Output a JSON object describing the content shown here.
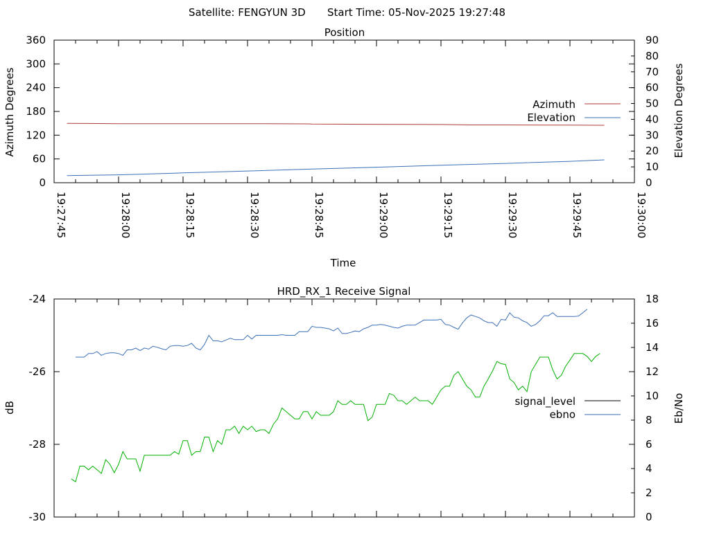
{
  "header": {
    "satellite": "Satellite: FENGYUN 3D",
    "start_time": "Start Time: 05-Nov-2025 19:27:48"
  },
  "chart_data": [
    {
      "type": "line",
      "title": "Position",
      "xlabel": "Time",
      "ylabel": "Azimuth Degrees",
      "y2label": "Elevation Degrees",
      "xlim": [
        "19:27:45",
        "19:30:00"
      ],
      "ylim": [
        0,
        360
      ],
      "y2lim": [
        0,
        90
      ],
      "x_ticks": [
        "19:27:45",
        "19:28:00",
        "19:28:15",
        "19:28:30",
        "19:28:45",
        "19:29:00",
        "19:29:15",
        "19:29:30",
        "19:29:45",
        "19:30:00"
      ],
      "y_ticks": [
        "0",
        "60",
        "120",
        "180",
        "240",
        "300",
        "360"
      ],
      "y2_ticks": [
        "0",
        "10",
        "20",
        "30",
        "40",
        "50",
        "60",
        "70",
        "80",
        "90"
      ],
      "legend_position": "right",
      "series": [
        {
          "name": "Azimuth",
          "axis": "y",
          "color": "#b03a3a",
          "points": [
            [
              "19:27:48",
              150
            ],
            [
              "19:28:00",
              149
            ],
            [
              "19:28:15",
              149
            ],
            [
              "19:28:30",
              149
            ],
            [
              "19:28:44",
              148.5
            ],
            [
              "19:28:45",
              148
            ],
            [
              "19:29:00",
              147.5
            ],
            [
              "19:29:15",
              147
            ],
            [
              "19:29:22",
              146
            ],
            [
              "19:29:30",
              146
            ],
            [
              "19:29:45",
              145.5
            ],
            [
              "19:29:53",
              145
            ]
          ]
        },
        {
          "name": "Elevation",
          "axis": "y2",
          "color": "#3b6fb6",
          "points": [
            [
              "19:27:48",
              4.5
            ],
            [
              "19:28:00",
              5
            ],
            [
              "19:28:15",
              6.2
            ],
            [
              "19:28:30",
              7.4
            ],
            [
              "19:28:45",
              8.6
            ],
            [
              "19:29:00",
              9.8
            ],
            [
              "19:29:15",
              11
            ],
            [
              "19:29:30",
              12.2
            ],
            [
              "19:29:45",
              13.5
            ],
            [
              "19:29:53",
              14.4
            ]
          ]
        }
      ]
    },
    {
      "type": "line",
      "title": "HRD_RX_1 Receive Signal",
      "xlabel": "",
      "ylabel": "dB",
      "y2label": "Eb/No",
      "xlim": [
        "19:27:45",
        "19:30:00"
      ],
      "ylim": [
        -30,
        -24
      ],
      "y2lim": [
        0,
        18
      ],
      "y_ticks": [
        "-30",
        "-28",
        "-26",
        "-24"
      ],
      "y2_ticks": [
        "0",
        "2",
        "4",
        "6",
        "8",
        "10",
        "12",
        "14",
        "16",
        "18"
      ],
      "legend_position": "right",
      "series": [
        {
          "name": "signal_level",
          "axis": "y",
          "color": "#000000",
          "values": []
        },
        {
          "name": "ebno",
          "axis": "y",
          "color": "#3b6fb6",
          "start": "19:27:50",
          "step_seconds": 1,
          "values": [
            -25.6,
            -25.6,
            -25.6,
            -25.5,
            -25.5,
            -25.45,
            -25.55,
            -25.5,
            -25.48,
            -25.48,
            -25.5,
            -25.55,
            -25.4,
            -25.4,
            -25.35,
            -25.42,
            -25.35,
            -25.38,
            -25.3,
            -25.33,
            -25.37,
            -25.4,
            -25.3,
            -25.28,
            -25.28,
            -25.3,
            -25.28,
            -25.22,
            -25.35,
            -25.4,
            -25.25,
            -25.0,
            -25.15,
            -25.15,
            -25.18,
            -25.13,
            -25.08,
            -25.12,
            -25.12,
            -25.12,
            -25.0,
            -25.1,
            -25.0,
            -25.0,
            -25.0,
            -25.0,
            -25.0,
            -25.0,
            -24.98,
            -25.0,
            -25.0,
            -25.0,
            -24.9,
            -24.9,
            -24.9,
            -24.75,
            -24.78,
            -24.78,
            -24.8,
            -24.82,
            -24.88,
            -24.8,
            -24.95,
            -24.95,
            -24.92,
            -24.88,
            -24.9,
            -24.82,
            -24.78,
            -24.72,
            -24.72,
            -24.7,
            -24.72,
            -24.75,
            -24.78,
            -24.8,
            -24.75,
            -24.72,
            -24.72,
            -24.72,
            -24.65,
            -24.58,
            -24.58,
            -24.58,
            -24.58,
            -24.56,
            -24.7,
            -24.72,
            -24.78,
            -24.83,
            -24.66,
            -24.52,
            -24.44,
            -24.48,
            -24.52,
            -24.6,
            -24.65,
            -24.65,
            -24.75,
            -24.56,
            -24.58,
            -24.38,
            -24.5,
            -24.52,
            -24.6,
            -24.65,
            -24.75,
            -24.7,
            -24.6,
            -24.46,
            -24.46,
            -24.38,
            -24.48,
            -24.48,
            -24.48,
            -24.48,
            -24.48,
            -24.47,
            -24.38,
            -24.28
          ]
        },
        {
          "name": "",
          "axis": "y",
          "color": "#00b000",
          "start": "19:27:49",
          "step_seconds": 1,
          "values": [
            -28.95,
            -29.03,
            -28.6,
            -28.6,
            -28.7,
            -28.6,
            -28.7,
            -28.8,
            -28.42,
            -28.55,
            -28.78,
            -28.55,
            -28.2,
            -28.4,
            -28.4,
            -28.4,
            -28.74,
            -28.3,
            -28.3,
            -28.3,
            -28.3,
            -28.3,
            -28.3,
            -28.3,
            -28.2,
            -28.27,
            -27.9,
            -27.9,
            -28.3,
            -28.2,
            -28.2,
            -27.8,
            -27.8,
            -28.2,
            -27.9,
            -28.0,
            -27.6,
            -27.6,
            -27.5,
            -27.7,
            -27.5,
            -27.6,
            -27.5,
            -27.65,
            -27.6,
            -27.6,
            -27.7,
            -27.45,
            -27.3,
            -27.0,
            -27.1,
            -27.2,
            -27.3,
            -27.3,
            -27.1,
            -27.1,
            -27.3,
            -27.1,
            -27.2,
            -27.2,
            -27.2,
            -27.1,
            -26.8,
            -26.9,
            -26.9,
            -26.8,
            -26.9,
            -26.9,
            -26.9,
            -27.35,
            -27.25,
            -26.9,
            -26.9,
            -26.9,
            -26.6,
            -26.65,
            -26.8,
            -26.8,
            -26.9,
            -26.8,
            -26.7,
            -26.8,
            -26.8,
            -26.8,
            -26.9,
            -26.7,
            -26.5,
            -26.4,
            -26.4,
            -26.1,
            -26.0,
            -26.2,
            -26.4,
            -26.5,
            -26.7,
            -26.7,
            -26.4,
            -26.2,
            -25.98,
            -25.72,
            -25.78,
            -25.8,
            -26.2,
            -26.3,
            -26.5,
            -26.4,
            -26.55,
            -26.0,
            -25.8,
            -25.6,
            -25.6,
            -25.6,
            -25.95,
            -26.2,
            -26.1,
            -25.85,
            -25.68,
            -25.5,
            -25.5,
            -25.5,
            -25.58,
            -25.72,
            -25.58,
            -25.5
          ]
        }
      ]
    }
  ]
}
